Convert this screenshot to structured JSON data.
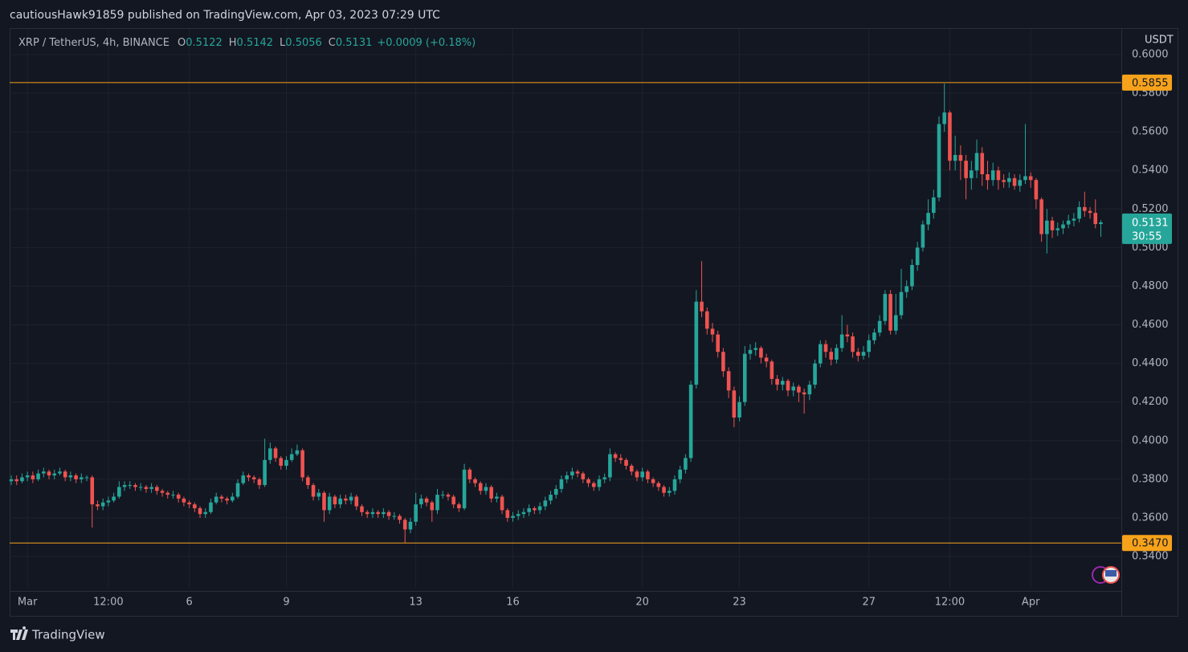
{
  "chart_data": {
    "type": "candlestick",
    "header": "cautiousHawk91859 published on TradingView.com, Apr 03, 2023 07:29 UTC",
    "symbol": "XRP / TetherUS, 4h, BINANCE",
    "ohlc_labels": [
      "O",
      "H",
      "L",
      "C"
    ],
    "change": "+0.0009 (+0.18%)",
    "currency": "USDT",
    "countdown": "30:55",
    "up_color": "#26a69a",
    "down_color": "#ef5350",
    "open": [
      0.379,
      0.38,
      0.379,
      0.381,
      0.382,
      0.38,
      0.383,
      0.384,
      0.382,
      0.383,
      0.384,
      0.381,
      0.382,
      0.38,
      0.381,
      0.381,
      0.367,
      0.366,
      0.368,
      0.369,
      0.371,
      0.376,
      0.377,
      0.377,
      0.376,
      0.376,
      0.375,
      0.376,
      0.374,
      0.373,
      0.372,
      0.372,
      0.37,
      0.368,
      0.367,
      0.365,
      0.362,
      0.363,
      0.368,
      0.371,
      0.37,
      0.369,
      0.371,
      0.378,
      0.382,
      0.381,
      0.38,
      0.377,
      0.39,
      0.396,
      0.391,
      0.387,
      0.39,
      0.393,
      0.395,
      0.381,
      0.377,
      0.371,
      0.373,
      0.364,
      0.371,
      0.367,
      0.37,
      0.369,
      0.371,
      0.366,
      0.363,
      0.362,
      0.363,
      0.362,
      0.363,
      0.361,
      0.361,
      0.359,
      0.354,
      0.358,
      0.367,
      0.37,
      0.368,
      0.364,
      0.372,
      0.372,
      0.371,
      0.367,
      0.365,
      0.385,
      0.38,
      0.378,
      0.374,
      0.376,
      0.37,
      0.371,
      0.364,
      0.36,
      0.361,
      0.362,
      0.363,
      0.365,
      0.364,
      0.366,
      0.369,
      0.372,
      0.375,
      0.38,
      0.382,
      0.384,
      0.383,
      0.38,
      0.378,
      0.376,
      0.38,
      0.381,
      0.393,
      0.391,
      0.39,
      0.387,
      0.384,
      0.381,
      0.384,
      0.38,
      0.378,
      0.376,
      0.373,
      0.374,
      0.38,
      0.385,
      0.391,
      0.429,
      0.472,
      0.467,
      0.458,
      0.455,
      0.446,
      0.436,
      0.426,
      0.412,
      0.42,
      0.445,
      0.447,
      0.448,
      0.443,
      0.441,
      0.432,
      0.429,
      0.431,
      0.426,
      0.428,
      0.425,
      0.424,
      0.429,
      0.44,
      0.45,
      0.446,
      0.442,
      0.448,
      0.455,
      0.454,
      0.446,
      0.444,
      0.446,
      0.452,
      0.456,
      0.462,
      0.476,
      0.457,
      0.465,
      0.477,
      0.48,
      0.491,
      0.5,
      0.512,
      0.518,
      0.526,
      0.564,
      0.57,
      0.545,
      0.548,
      0.545,
      0.536,
      0.54,
      0.549,
      0.538,
      0.535,
      0.54,
      0.535,
      0.534,
      0.536,
      0.532,
      0.535,
      0.537,
      0.535,
      0.525,
      0.507,
      0.514,
      0.509,
      0.51,
      0.512,
      0.514,
      0.515,
      0.521,
      0.519,
      0.518,
      0.5122
    ],
    "high": [
      0.382,
      0.382,
      0.383,
      0.384,
      0.384,
      0.385,
      0.386,
      0.385,
      0.385,
      0.386,
      0.385,
      0.384,
      0.383,
      0.383,
      0.382,
      0.382,
      0.369,
      0.37,
      0.371,
      0.373,
      0.379,
      0.379,
      0.379,
      0.378,
      0.378,
      0.377,
      0.378,
      0.377,
      0.375,
      0.374,
      0.374,
      0.373,
      0.371,
      0.369,
      0.368,
      0.366,
      0.365,
      0.37,
      0.373,
      0.372,
      0.371,
      0.373,
      0.38,
      0.384,
      0.383,
      0.382,
      0.381,
      0.401,
      0.399,
      0.397,
      0.392,
      0.392,
      0.396,
      0.398,
      0.396,
      0.382,
      0.378,
      0.375,
      0.374,
      0.373,
      0.372,
      0.372,
      0.372,
      0.373,
      0.372,
      0.367,
      0.364,
      0.365,
      0.364,
      0.365,
      0.364,
      0.363,
      0.362,
      0.36,
      0.36,
      0.373,
      0.372,
      0.371,
      0.369,
      0.375,
      0.374,
      0.373,
      0.372,
      0.368,
      0.388,
      0.386,
      0.381,
      0.379,
      0.378,
      0.377,
      0.373,
      0.372,
      0.365,
      0.363,
      0.364,
      0.365,
      0.367,
      0.366,
      0.368,
      0.371,
      0.374,
      0.377,
      0.382,
      0.384,
      0.386,
      0.385,
      0.384,
      0.381,
      0.379,
      0.382,
      0.383,
      0.396,
      0.394,
      0.393,
      0.391,
      0.388,
      0.385,
      0.386,
      0.385,
      0.381,
      0.379,
      0.377,
      0.376,
      0.382,
      0.387,
      0.393,
      0.431,
      0.478,
      0.493,
      0.469,
      0.461,
      0.457,
      0.448,
      0.438,
      0.428,
      0.423,
      0.449,
      0.45,
      0.451,
      0.449,
      0.445,
      0.442,
      0.434,
      0.433,
      0.432,
      0.43,
      0.429,
      0.427,
      0.431,
      0.442,
      0.452,
      0.452,
      0.448,
      0.45,
      0.465,
      0.46,
      0.456,
      0.448,
      0.449,
      0.455,
      0.458,
      0.465,
      0.478,
      0.478,
      0.476,
      0.489,
      0.483,
      0.494,
      0.503,
      0.514,
      0.525,
      0.53,
      0.568,
      0.585,
      0.571,
      0.558,
      0.553,
      0.548,
      0.545,
      0.556,
      0.552,
      0.545,
      0.544,
      0.542,
      0.538,
      0.539,
      0.538,
      0.538,
      0.564,
      0.539,
      0.536,
      0.526,
      0.52,
      0.516,
      0.513,
      0.514,
      0.517,
      0.518,
      0.524,
      0.529,
      0.521,
      0.525,
      0.5142
    ],
    "low": [
      0.377,
      0.377,
      0.378,
      0.379,
      0.378,
      0.379,
      0.381,
      0.38,
      0.38,
      0.382,
      0.379,
      0.379,
      0.378,
      0.378,
      0.379,
      0.355,
      0.364,
      0.364,
      0.366,
      0.368,
      0.37,
      0.374,
      0.375,
      0.374,
      0.374,
      0.373,
      0.373,
      0.372,
      0.371,
      0.37,
      0.37,
      0.368,
      0.366,
      0.365,
      0.363,
      0.36,
      0.36,
      0.362,
      0.367,
      0.368,
      0.367,
      0.368,
      0.37,
      0.377,
      0.379,
      0.378,
      0.375,
      0.376,
      0.388,
      0.389,
      0.385,
      0.385,
      0.389,
      0.392,
      0.379,
      0.375,
      0.369,
      0.369,
      0.358,
      0.362,
      0.365,
      0.365,
      0.367,
      0.367,
      0.364,
      0.361,
      0.36,
      0.36,
      0.36,
      0.36,
      0.359,
      0.359,
      0.357,
      0.347,
      0.352,
      0.356,
      0.365,
      0.366,
      0.358,
      0.362,
      0.37,
      0.369,
      0.365,
      0.363,
      0.364,
      0.378,
      0.376,
      0.372,
      0.372,
      0.368,
      0.368,
      0.362,
      0.358,
      0.358,
      0.359,
      0.36,
      0.361,
      0.362,
      0.362,
      0.364,
      0.367,
      0.37,
      0.373,
      0.378,
      0.38,
      0.381,
      0.378,
      0.376,
      0.374,
      0.374,
      0.378,
      0.379,
      0.389,
      0.388,
      0.385,
      0.382,
      0.379,
      0.379,
      0.378,
      0.376,
      0.374,
      0.371,
      0.371,
      0.372,
      0.378,
      0.383,
      0.389,
      0.427,
      0.464,
      0.455,
      0.451,
      0.443,
      0.433,
      0.422,
      0.407,
      0.41,
      0.418,
      0.442,
      0.444,
      0.44,
      0.438,
      0.429,
      0.426,
      0.426,
      0.423,
      0.423,
      0.42,
      0.414,
      0.421,
      0.427,
      0.438,
      0.443,
      0.439,
      0.44,
      0.446,
      0.451,
      0.443,
      0.441,
      0.442,
      0.443,
      0.45,
      0.454,
      0.46,
      0.455,
      0.455,
      0.463,
      0.474,
      0.478,
      0.488,
      0.498,
      0.509,
      0.515,
      0.524,
      0.56,
      0.54,
      0.54,
      0.535,
      0.525,
      0.53,
      0.536,
      0.532,
      0.53,
      0.532,
      0.53,
      0.531,
      0.531,
      0.53,
      0.529,
      0.533,
      0.531,
      0.52,
      0.503,
      0.497,
      0.505,
      0.506,
      0.507,
      0.51,
      0.511,
      0.513,
      0.516,
      0.515,
      0.51,
      0.5056
    ],
    "close": [
      0.38,
      0.379,
      0.381,
      0.382,
      0.38,
      0.383,
      0.384,
      0.382,
      0.383,
      0.384,
      0.381,
      0.382,
      0.38,
      0.381,
      0.381,
      0.367,
      0.366,
      0.368,
      0.369,
      0.371,
      0.376,
      0.377,
      0.377,
      0.376,
      0.376,
      0.375,
      0.376,
      0.374,
      0.373,
      0.372,
      0.372,
      0.37,
      0.368,
      0.367,
      0.365,
      0.362,
      0.363,
      0.368,
      0.371,
      0.37,
      0.369,
      0.371,
      0.378,
      0.382,
      0.381,
      0.38,
      0.377,
      0.39,
      0.396,
      0.391,
      0.387,
      0.39,
      0.393,
      0.395,
      0.381,
      0.377,
      0.371,
      0.373,
      0.364,
      0.371,
      0.367,
      0.37,
      0.369,
      0.371,
      0.366,
      0.363,
      0.362,
      0.363,
      0.362,
      0.363,
      0.361,
      0.361,
      0.359,
      0.354,
      0.358,
      0.367,
      0.37,
      0.368,
      0.364,
      0.372,
      0.372,
      0.371,
      0.367,
      0.365,
      0.385,
      0.38,
      0.378,
      0.374,
      0.376,
      0.37,
      0.371,
      0.364,
      0.36,
      0.361,
      0.362,
      0.363,
      0.365,
      0.364,
      0.366,
      0.369,
      0.372,
      0.375,
      0.38,
      0.382,
      0.384,
      0.383,
      0.38,
      0.378,
      0.376,
      0.38,
      0.381,
      0.393,
      0.391,
      0.39,
      0.387,
      0.384,
      0.381,
      0.384,
      0.38,
      0.378,
      0.376,
      0.373,
      0.374,
      0.38,
      0.385,
      0.391,
      0.429,
      0.472,
      0.467,
      0.458,
      0.455,
      0.446,
      0.436,
      0.426,
      0.412,
      0.42,
      0.445,
      0.447,
      0.448,
      0.443,
      0.441,
      0.432,
      0.429,
      0.431,
      0.426,
      0.428,
      0.425,
      0.424,
      0.429,
      0.44,
      0.45,
      0.446,
      0.442,
      0.448,
      0.455,
      0.454,
      0.446,
      0.444,
      0.446,
      0.452,
      0.456,
      0.462,
      0.476,
      0.457,
      0.465,
      0.477,
      0.48,
      0.491,
      0.5,
      0.512,
      0.518,
      0.526,
      0.564,
      0.57,
      0.545,
      0.548,
      0.545,
      0.536,
      0.54,
      0.549,
      0.538,
      0.535,
      0.54,
      0.535,
      0.534,
      0.536,
      0.532,
      0.535,
      0.537,
      0.535,
      0.525,
      0.507,
      0.514,
      0.509,
      0.51,
      0.512,
      0.514,
      0.515,
      0.521,
      0.519,
      0.518,
      0.5122,
      0.5131
    ],
    "xlim": [
      -0.3,
      205.8
    ],
    "xticks": [
      {
        "value": 3,
        "label": "Mar"
      },
      {
        "value": 18,
        "label": "12:00"
      },
      {
        "value": 33,
        "label": "6"
      },
      {
        "value": 51,
        "label": "9"
      },
      {
        "value": 75,
        "label": "13"
      },
      {
        "value": 93,
        "label": "16"
      },
      {
        "value": 117,
        "label": "20"
      },
      {
        "value": 135,
        "label": "23"
      },
      {
        "value": 159,
        "label": "27"
      },
      {
        "value": 174,
        "label": "12:00"
      },
      {
        "value": 189,
        "label": "Apr"
      }
    ],
    "ylim": [
      0.3238,
      0.6133
    ],
    "yticks": [
      {
        "value": 0.34,
        "label": "0.3400"
      },
      {
        "value": 0.36,
        "label": "0.3600"
      },
      {
        "value": 0.38,
        "label": "0.3800"
      },
      {
        "value": 0.4,
        "label": "0.4000"
      },
      {
        "value": 0.42,
        "label": "0.4200"
      },
      {
        "value": 0.44,
        "label": "0.4400"
      },
      {
        "value": 0.46,
        "label": "0.4600"
      },
      {
        "value": 0.48,
        "label": "0.4800"
      },
      {
        "value": 0.5,
        "label": "0.5000"
      },
      {
        "value": 0.52,
        "label": "0.5200"
      },
      {
        "value": 0.54,
        "label": "0.5400"
      },
      {
        "value": 0.56,
        "label": "0.5600"
      },
      {
        "value": 0.58,
        "label": "0.5800"
      },
      {
        "value": 0.6,
        "label": "0.6000"
      }
    ],
    "hlines": [
      {
        "value": 0.5855,
        "label": "0.5855",
        "color": "#f7a21b"
      },
      {
        "value": 0.347,
        "label": "0.3470",
        "color": "#f7a21b"
      }
    ],
    "grid": true
  },
  "footer": "TradingView"
}
